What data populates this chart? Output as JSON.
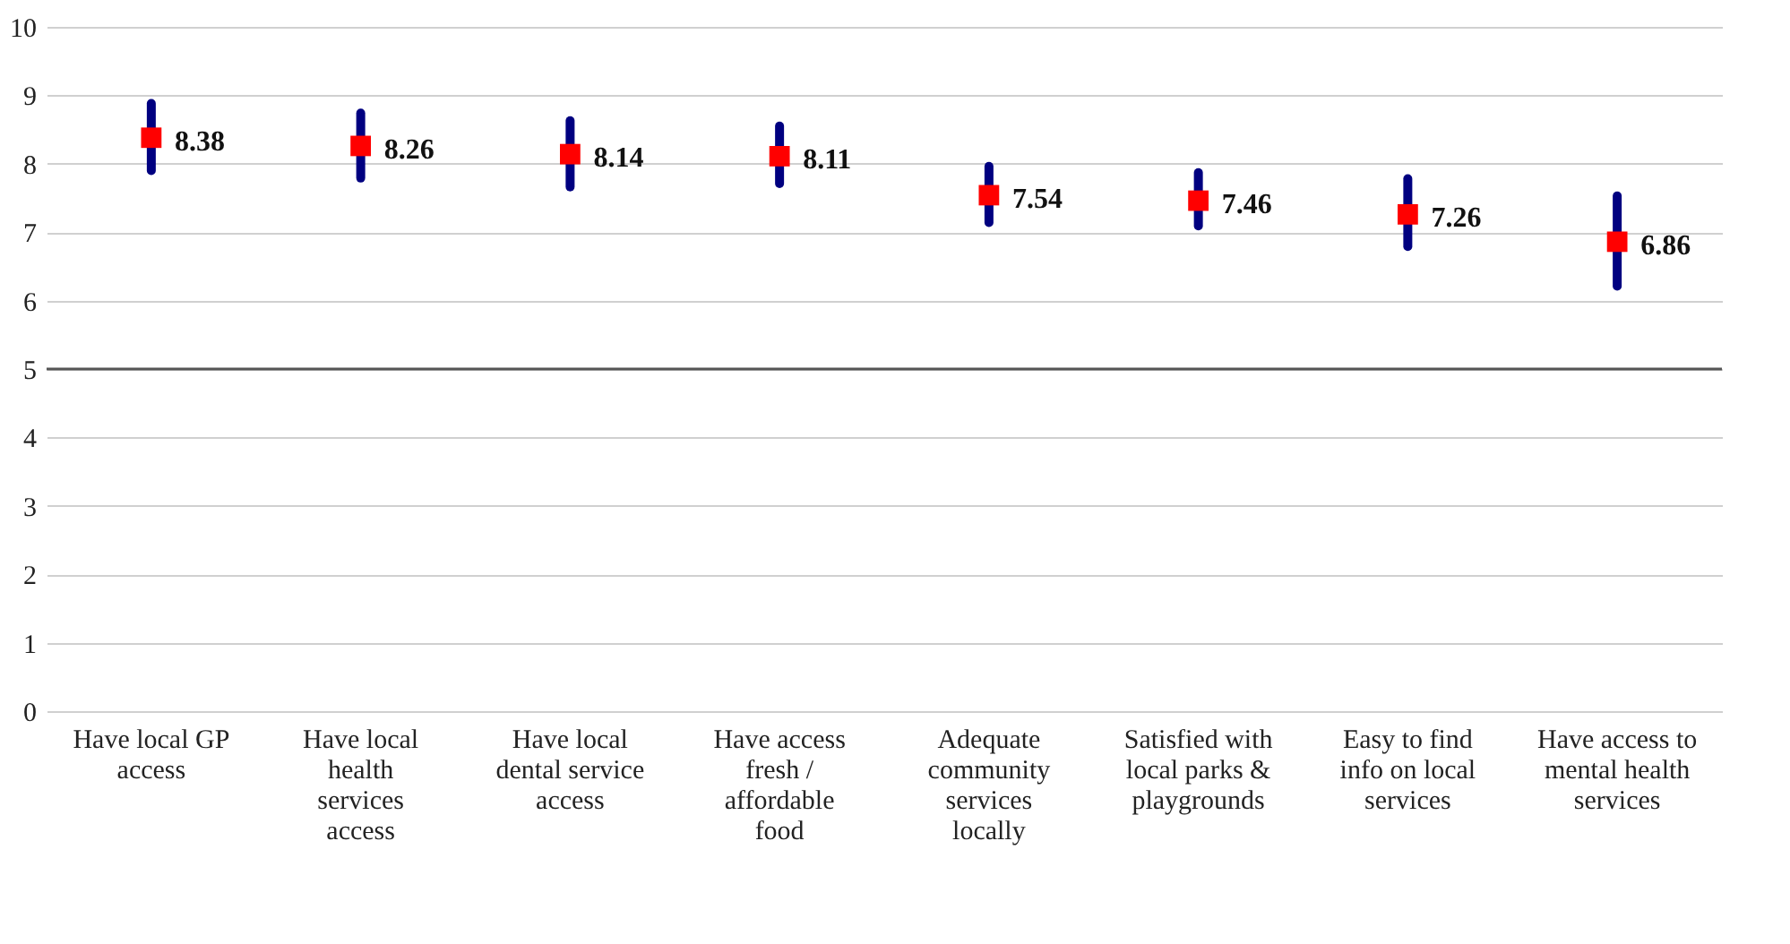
{
  "chart_data": {
    "type": "scatter",
    "categories": [
      "Have local GP access",
      "Have local health services access",
      "Have local dental service access",
      "Have access fresh / affordable food",
      "Adequate community services locally",
      "Satisfied with local parks & playgrounds",
      "Easy to find info on local services",
      "Have access to mental health services"
    ],
    "series": [
      {
        "color": "#ff0000",
        "values": [
          8.38,
          8.26,
          8.14,
          8.11,
          7.54,
          7.46,
          7.26,
          6.86
        ],
        "errors": [
          [
            7.9,
            8.88
          ],
          [
            7.79,
            8.74
          ],
          [
            7.66,
            8.63
          ],
          [
            7.71,
            8.55
          ],
          [
            7.14,
            7.96
          ],
          [
            7.09,
            7.87
          ],
          [
            6.79,
            7.78
          ],
          [
            6.21,
            7.53
          ]
        ]
      }
    ],
    "ylim": [
      0,
      10
    ],
    "yticks": [
      0,
      1,
      2,
      3,
      4,
      5,
      6,
      7,
      8,
      9,
      10
    ],
    "grid": "y",
    "marker": "square",
    "data_labels": true,
    "ref_lines": [
      {
        "axis": "y",
        "value": 5,
        "color": "#555555"
      }
    ]
  }
}
